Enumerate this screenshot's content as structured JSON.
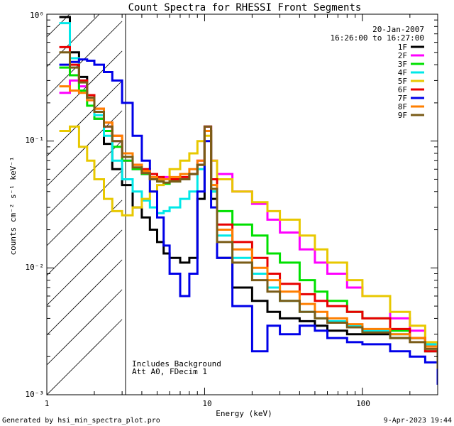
{
  "chart_data": {
    "type": "line",
    "title": "Count Spectra for RHESSI Front Segments",
    "xlabel": "Energy (keV)",
    "ylabel": "counts cm⁻² s⁻¹ keV⁻¹",
    "xscale": "log",
    "yscale": "log",
    "xlim": [
      1,
      300
    ],
    "ylim": [
      0.001,
      1
    ],
    "x_tick_labels": [
      "1",
      "10",
      "100"
    ],
    "y_tick_labels": [
      "10⁻³",
      "10⁻²",
      "10⁻¹",
      "10⁰"
    ],
    "date": "20-Jan-2007",
    "time_range": "16:26:00 to 16:27:00",
    "annotations": [
      "Includes Background",
      "Att A0, FDecim 1"
    ],
    "shaded_region_kev": [
      1,
      3
    ],
    "legend_position": "top-right",
    "series": [
      {
        "name": "1F",
        "color": "#000000",
        "x": [
          1.2,
          1.4,
          1.6,
          1.8,
          2.0,
          2.3,
          2.6,
          3.0,
          3.5,
          4.0,
          4.5,
          5.0,
          5.5,
          6.0,
          7.0,
          8.0,
          9.0,
          10.0,
          11.0,
          12.0,
          15.0,
          20.0,
          25.0,
          30.0,
          40.0,
          50.0,
          60.0,
          80.0,
          100.0,
          150.0,
          200.0,
          250.0,
          300.0
        ],
        "y": [
          0.95,
          0.5,
          0.32,
          0.22,
          0.15,
          0.095,
          0.06,
          0.045,
          0.03,
          0.025,
          0.02,
          0.016,
          0.013,
          0.012,
          0.011,
          0.012,
          0.035,
          0.12,
          0.035,
          0.012,
          0.007,
          0.0055,
          0.0045,
          0.004,
          0.0038,
          0.0035,
          0.0032,
          0.003,
          0.003,
          0.0028,
          0.0028,
          0.0025,
          0.0015
        ]
      },
      {
        "name": "2F",
        "color": "#ff00ff",
        "x": [
          1.2,
          1.4,
          1.6,
          1.8,
          2.0,
          2.3,
          2.6,
          3.0,
          3.5,
          4.0,
          4.5,
          5.0,
          5.5,
          6.0,
          7.0,
          8.0,
          9.0,
          10.0,
          11.0,
          12.0,
          15.0,
          20.0,
          25.0,
          30.0,
          40.0,
          50.0,
          60.0,
          80.0,
          100.0,
          150.0,
          200.0,
          250.0,
          300.0
        ],
        "y": [
          0.24,
          0.3,
          0.27,
          0.21,
          0.17,
          0.13,
          0.1,
          0.07,
          0.06,
          0.055,
          0.05,
          0.05,
          0.052,
          0.05,
          0.05,
          0.055,
          0.07,
          0.13,
          0.07,
          0.055,
          0.04,
          0.032,
          0.024,
          0.019,
          0.014,
          0.011,
          0.009,
          0.007,
          0.006,
          0.004,
          0.0032,
          0.0022,
          0.0015
        ]
      },
      {
        "name": "3F",
        "color": "#00e000",
        "x": [
          1.2,
          1.4,
          1.6,
          1.8,
          2.0,
          2.3,
          2.6,
          3.0,
          3.5,
          4.0,
          4.5,
          5.0,
          5.5,
          6.0,
          7.0,
          8.0,
          9.0,
          10.0,
          11.0,
          12.0,
          15.0,
          20.0,
          25.0,
          30.0,
          40.0,
          50.0,
          60.0,
          80.0,
          100.0,
          150.0,
          200.0,
          250.0,
          300.0
        ],
        "y": [
          0.38,
          0.33,
          0.25,
          0.19,
          0.15,
          0.12,
          0.09,
          0.07,
          0.06,
          0.055,
          0.05,
          0.048,
          0.046,
          0.048,
          0.05,
          0.055,
          0.065,
          0.12,
          0.04,
          0.028,
          0.022,
          0.018,
          0.013,
          0.011,
          0.008,
          0.0065,
          0.0055,
          0.0045,
          0.004,
          0.0032,
          0.0028,
          0.0022,
          0.0015
        ]
      },
      {
        "name": "4F",
        "color": "#00e8e8",
        "x": [
          1.2,
          1.4,
          1.6,
          1.8,
          2.0,
          2.3,
          2.6,
          3.0,
          3.5,
          4.0,
          4.5,
          5.0,
          5.5,
          6.0,
          7.0,
          8.0,
          9.0,
          10.0,
          11.0,
          12.0,
          15.0,
          20.0,
          25.0,
          30.0,
          40.0,
          50.0,
          60.0,
          80.0,
          100.0,
          150.0,
          200.0,
          250.0,
          300.0
        ],
        "y": [
          0.85,
          0.45,
          0.3,
          0.22,
          0.16,
          0.11,
          0.07,
          0.05,
          0.04,
          0.034,
          0.03,
          0.027,
          0.028,
          0.03,
          0.035,
          0.04,
          0.06,
          0.12,
          0.04,
          0.018,
          0.012,
          0.009,
          0.007,
          0.0055,
          0.0045,
          0.004,
          0.0038,
          0.0035,
          0.0032,
          0.003,
          0.0028,
          0.0025,
          0.0015
        ]
      },
      {
        "name": "5F",
        "color": "#e8c800",
        "x": [
          1.2,
          1.4,
          1.6,
          1.8,
          2.0,
          2.3,
          2.6,
          3.0,
          3.5,
          4.0,
          4.5,
          5.0,
          5.5,
          6.0,
          7.0,
          8.0,
          9.0,
          10.0,
          11.0,
          12.0,
          15.0,
          20.0,
          25.0,
          30.0,
          40.0,
          50.0,
          60.0,
          80.0,
          100.0,
          150.0,
          200.0,
          250.0,
          300.0
        ],
        "y": [
          0.12,
          0.13,
          0.09,
          0.07,
          0.05,
          0.035,
          0.028,
          0.026,
          0.03,
          0.035,
          0.04,
          0.045,
          0.05,
          0.06,
          0.07,
          0.08,
          0.1,
          0.11,
          0.07,
          0.05,
          0.04,
          0.033,
          0.028,
          0.024,
          0.018,
          0.014,
          0.011,
          0.008,
          0.006,
          0.0045,
          0.0035,
          0.0026,
          0.002
        ]
      },
      {
        "name": "6F",
        "color": "#e80000",
        "x": [
          1.2,
          1.4,
          1.6,
          1.8,
          2.0,
          2.3,
          2.6,
          3.0,
          3.5,
          4.0,
          4.5,
          5.0,
          5.5,
          6.0,
          7.0,
          8.0,
          9.0,
          10.0,
          11.0,
          12.0,
          15.0,
          20.0,
          25.0,
          30.0,
          40.0,
          50.0,
          60.0,
          80.0,
          100.0,
          150.0,
          200.0,
          250.0,
          300.0
        ],
        "y": [
          0.55,
          0.4,
          0.3,
          0.23,
          0.18,
          0.14,
          0.11,
          0.08,
          0.065,
          0.06,
          0.055,
          0.052,
          0.05,
          0.05,
          0.052,
          0.055,
          0.065,
          0.13,
          0.05,
          0.022,
          0.016,
          0.012,
          0.009,
          0.0075,
          0.0062,
          0.0055,
          0.005,
          0.0045,
          0.004,
          0.0033,
          0.0028,
          0.0022,
          0.0015
        ]
      },
      {
        "name": "7F",
        "color": "#0000e8",
        "x": [
          1.2,
          1.4,
          1.6,
          1.8,
          2.0,
          2.3,
          2.6,
          3.0,
          3.5,
          4.0,
          4.5,
          5.0,
          5.5,
          6.0,
          7.0,
          8.0,
          9.0,
          10.0,
          11.0,
          12.0,
          15.0,
          20.0,
          25.0,
          30.0,
          40.0,
          50.0,
          60.0,
          80.0,
          100.0,
          150.0,
          200.0,
          250.0,
          300.0
        ],
        "y": [
          0.4,
          0.42,
          0.44,
          0.43,
          0.4,
          0.35,
          0.3,
          0.2,
          0.11,
          0.07,
          0.04,
          0.025,
          0.015,
          0.009,
          0.006,
          0.009,
          0.04,
          0.1,
          0.03,
          0.012,
          0.005,
          0.0022,
          0.0035,
          0.003,
          0.0035,
          0.0032,
          0.0028,
          0.0026,
          0.0025,
          0.0022,
          0.002,
          0.0018,
          0.0012
        ]
      },
      {
        "name": "8F",
        "color": "#ff7f00",
        "x": [
          1.2,
          1.4,
          1.6,
          1.8,
          2.0,
          2.3,
          2.6,
          3.0,
          3.5,
          4.0,
          4.5,
          5.0,
          5.5,
          6.0,
          7.0,
          8.0,
          9.0,
          10.0,
          11.0,
          12.0,
          15.0,
          20.0,
          25.0,
          30.0,
          40.0,
          50.0,
          60.0,
          80.0,
          100.0,
          150.0,
          200.0,
          250.0,
          300.0
        ],
        "y": [
          0.27,
          0.25,
          0.24,
          0.21,
          0.18,
          0.14,
          0.11,
          0.08,
          0.065,
          0.058,
          0.052,
          0.05,
          0.05,
          0.052,
          0.055,
          0.06,
          0.07,
          0.12,
          0.045,
          0.02,
          0.014,
          0.01,
          0.008,
          0.0065,
          0.0052,
          0.0045,
          0.004,
          0.0036,
          0.0033,
          0.003,
          0.0028,
          0.0024,
          0.0017
        ]
      },
      {
        "name": "9F",
        "color": "#7a5c18",
        "x": [
          1.2,
          1.4,
          1.6,
          1.8,
          2.0,
          2.3,
          2.6,
          3.0,
          3.5,
          4.0,
          4.5,
          5.0,
          5.5,
          6.0,
          7.0,
          8.0,
          9.0,
          10.0,
          11.0,
          12.0,
          15.0,
          20.0,
          25.0,
          30.0,
          40.0,
          50.0,
          60.0,
          80.0,
          100.0,
          150.0,
          200.0,
          250.0,
          300.0
        ],
        "y": [
          0.5,
          0.38,
          0.29,
          0.22,
          0.17,
          0.13,
          0.1,
          0.075,
          0.062,
          0.056,
          0.05,
          0.048,
          0.047,
          0.048,
          0.05,
          0.055,
          0.065,
          0.13,
          0.042,
          0.016,
          0.011,
          0.008,
          0.0065,
          0.0055,
          0.0045,
          0.004,
          0.0037,
          0.0034,
          0.0031,
          0.0028,
          0.0026,
          0.0023,
          0.0016
        ]
      }
    ]
  },
  "footer": {
    "generated_by": "Generated by hsi_min_spectra_plot.pro",
    "timestamp": "9-Apr-2023 19:44"
  }
}
